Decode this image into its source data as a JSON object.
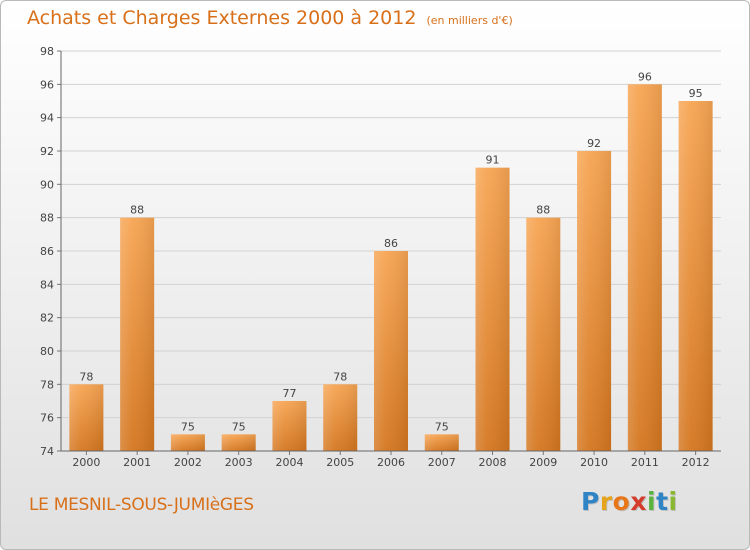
{
  "header": {
    "title": "Achats et Charges Externes 2000 à 2012",
    "unit": "(en milliers d'€)"
  },
  "footer": {
    "town": "LE MESNIL-SOUS-JUMIèGES",
    "logo_letters": [
      "P",
      "r",
      "o",
      "x",
      "i",
      "t",
      "i"
    ],
    "logo_colors": [
      "#2f84c6",
      "#e5a31e",
      "#e8771a",
      "#d43d2c",
      "#59b33e",
      "#2f84c6",
      "#8ab833"
    ]
  },
  "colors": {
    "title": "#d8701a",
    "bar_top": "#f7a553",
    "bar_bottom": "#d4761f",
    "grid": "#d2d2d2",
    "axis_text": "#444444"
  },
  "chart_data": {
    "type": "bar",
    "categories": [
      "2000",
      "2001",
      "2002",
      "2003",
      "2004",
      "2005",
      "2006",
      "2007",
      "2008",
      "2009",
      "2010",
      "2011",
      "2012"
    ],
    "values": [
      78,
      88,
      75,
      75,
      77,
      78,
      86,
      75,
      91,
      88,
      92,
      96,
      95
    ],
    "ylim": [
      74,
      98
    ],
    "yticks": [
      74,
      76,
      78,
      80,
      82,
      84,
      86,
      88,
      90,
      92,
      94,
      96,
      98
    ],
    "grid": true,
    "legend": "none"
  }
}
